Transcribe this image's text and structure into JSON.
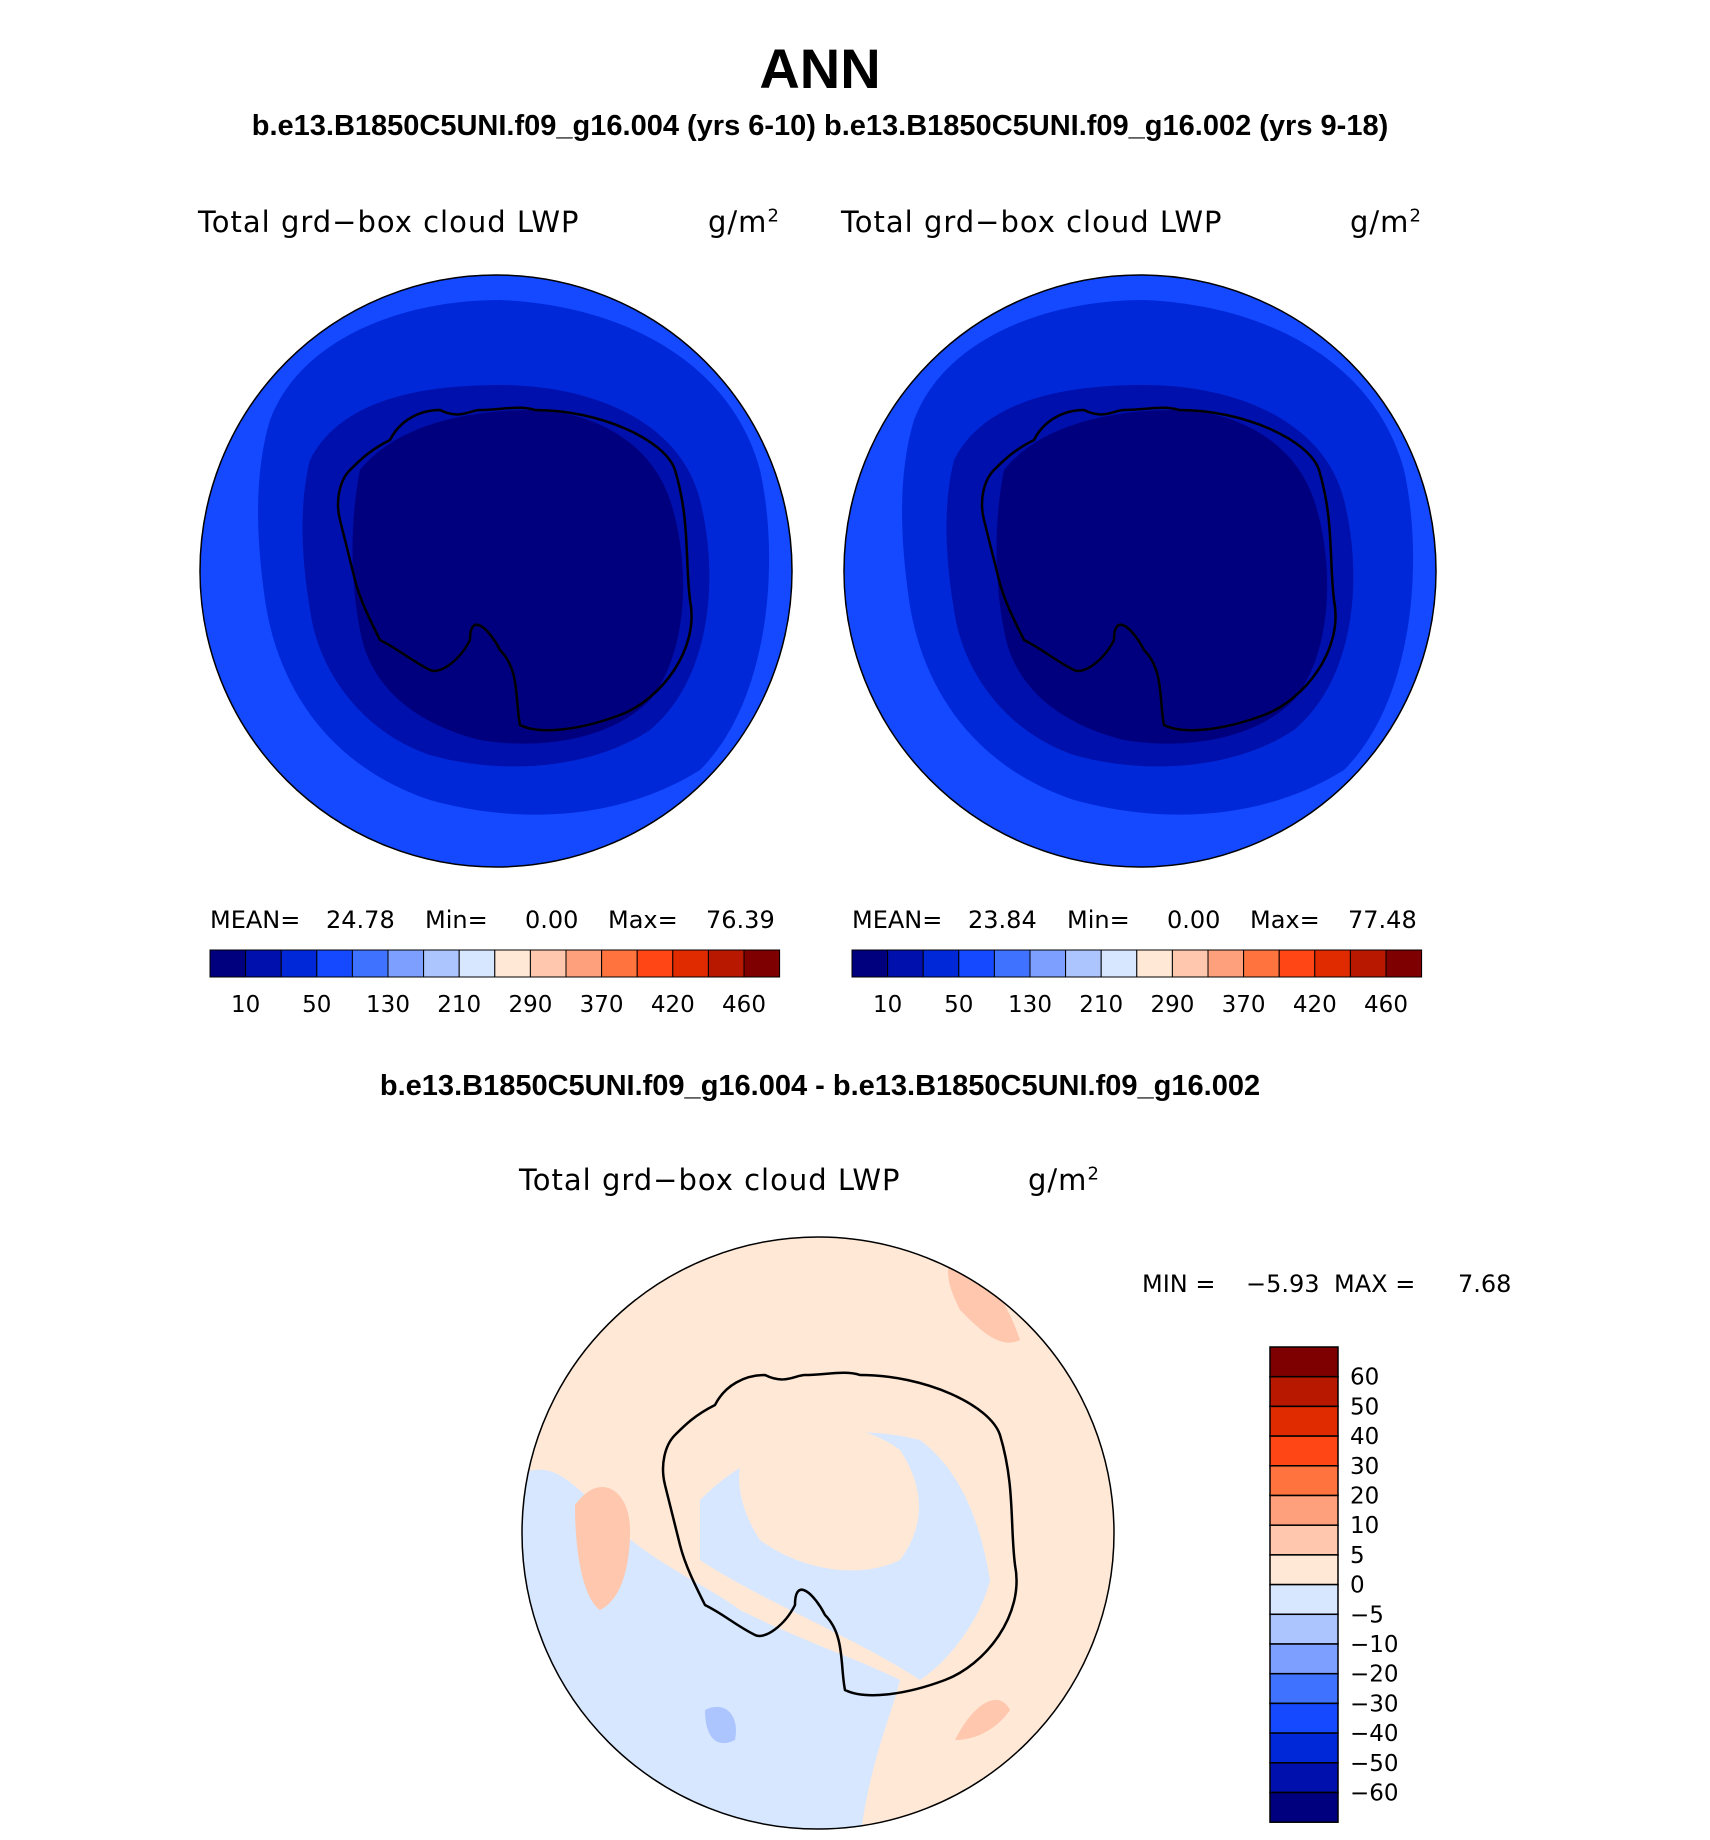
{
  "header": {
    "title": "ANN",
    "subtitle": "b.e13.B1850C5UNI.f09_g16.004 (yrs 6-10) b.e13.B1850C5UNI.f09_g16.002 (yrs 9-18)",
    "diff_title": "b.e13.B1850C5UNI.f09_g16.004 - b.e13.B1850C5UNI.f09_g16.002"
  },
  "panels": [
    {
      "variable": "Total grd−box cloud LWP",
      "unit_base": "g/m",
      "unit_exp": "2",
      "stats": {
        "mean_label": "MEAN=",
        "mean": "24.78",
        "min_label": "Min=",
        "min": "0.00",
        "max_label": "Max=",
        "max": "76.39"
      }
    },
    {
      "variable": "Total grd−box cloud LWP",
      "unit_base": "g/m",
      "unit_exp": "2",
      "stats": {
        "mean_label": "MEAN=",
        "mean": "23.84",
        "min_label": "Min=",
        "min": "0.00",
        "max_label": "Max=",
        "max": "77.48"
      }
    }
  ],
  "diff_panel": {
    "variable": "Total grd−box cloud LWP",
    "unit_base": "g/m",
    "unit_exp": "2",
    "stats": {
      "min_label": "MIN =",
      "min": "−5.93",
      "max_label": "MAX =",
      "max": "7.68"
    }
  },
  "colorbar_top": {
    "colors": [
      "#00007f",
      "#0010ac",
      "#0028d8",
      "#1449ff",
      "#3f73ff",
      "#7d9fff",
      "#adc5ff",
      "#d6e7ff",
      "#ffe8d6",
      "#ffc7ad",
      "#ffa07d",
      "#ff733f",
      "#ff4614",
      "#e02b00",
      "#b81700",
      "#7f0000"
    ],
    "tick_labels": [
      "10",
      "50",
      "130",
      "210",
      "290",
      "370",
      "420",
      "460"
    ]
  },
  "colorbar_diff": {
    "colors_top_to_bottom": [
      "#7f0000",
      "#b81700",
      "#e02b00",
      "#ff4614",
      "#ff733f",
      "#ffa07d",
      "#ffc7ad",
      "#ffe8d6",
      "#d6e7ff",
      "#adc5ff",
      "#7d9fff",
      "#3f73ff",
      "#1449ff",
      "#0028d8",
      "#0010ac",
      "#00007f"
    ],
    "tick_labels": [
      "60",
      "50",
      "40",
      "30",
      "20",
      "10",
      "5",
      "0",
      "−5",
      "−10",
      "−20",
      "−30",
      "−40",
      "−50",
      "−60"
    ]
  },
  "map_colors": {
    "outer": "#1449ff",
    "middle": "#0028d8",
    "inner": "#0010ac",
    "core": "#00007f",
    "diff_pos": "#ffe8d6",
    "diff_pos2": "#ffc7ad",
    "diff_neg": "#d6e7ff",
    "diff_neg2": "#adc5ff"
  }
}
